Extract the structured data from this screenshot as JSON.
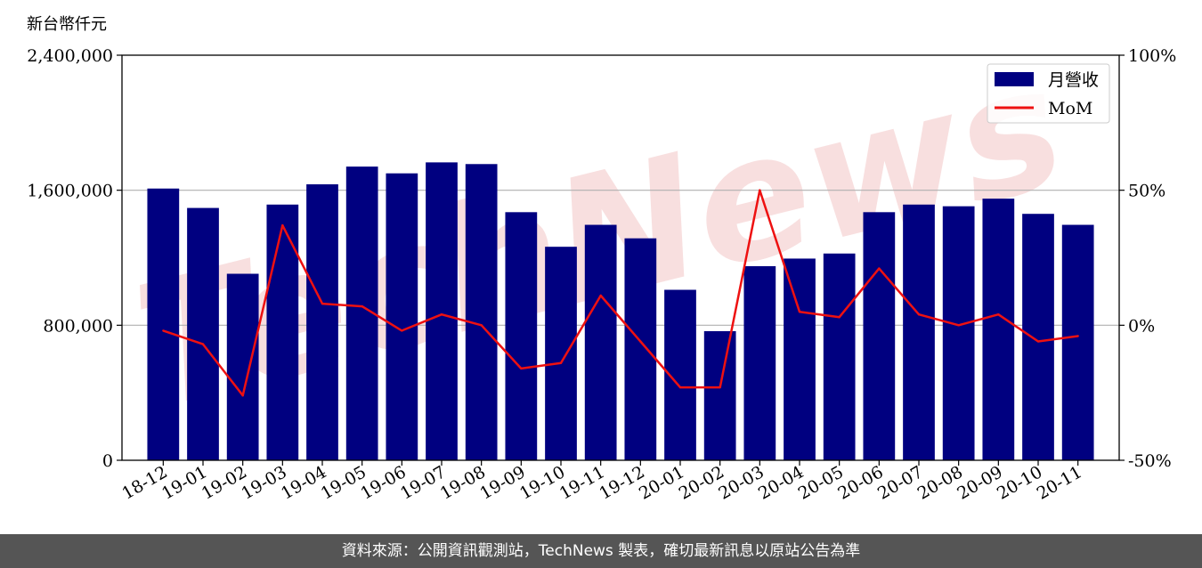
{
  "colors": {
    "bar": "#000080",
    "line": "#ee1111",
    "footer_bg": "#555555",
    "grid": "#b0b0b0",
    "watermark": "#f2c4c4"
  },
  "watermark": {
    "text": "TechNews"
  },
  "footer": {
    "text": "資料來源：公開資訊觀測站，TechNews 製表，確切最新訊息以原站公告為準"
  },
  "chart_data": {
    "type": "bar",
    "ylabel": "新台幣仟元",
    "categories": [
      "18-12",
      "19-01",
      "19-02",
      "19-03",
      "19-04",
      "19-05",
      "19-06",
      "19-07",
      "19-08",
      "19-09",
      "19-10",
      "19-11",
      "19-12",
      "20-01",
      "20-02",
      "20-03",
      "20-04",
      "20-05",
      "20-06",
      "20-07",
      "20-08",
      "20-09",
      "20-10",
      "20-11"
    ],
    "ylim": [
      0,
      2400000
    ],
    "yticks": [
      0,
      800000,
      1600000,
      2400000
    ],
    "yticklabels": [
      "0",
      "800,000",
      "1,600,000",
      "2,400,000"
    ],
    "y2lim": [
      -50,
      100
    ],
    "y2ticks": [
      -50,
      0,
      50,
      100
    ],
    "y2ticklabels": [
      "-50%",
      "0%",
      "50%",
      "100%"
    ],
    "grid": "horizontal",
    "legend": "top-right",
    "series": [
      {
        "name": "月營收",
        "type": "bar",
        "axis": "left",
        "values": [
          1610000,
          1495000,
          1105000,
          1515000,
          1635000,
          1740000,
          1700000,
          1765000,
          1755000,
          1470000,
          1265000,
          1395000,
          1315000,
          1010000,
          765000,
          1150000,
          1195000,
          1225000,
          1470000,
          1515000,
          1505000,
          1550000,
          1460000,
          1395000
        ]
      },
      {
        "name": "MoM",
        "type": "line",
        "axis": "right",
        "values": [
          -2,
          -7,
          -26,
          37,
          8,
          7,
          -2,
          4,
          0,
          -16,
          -14,
          11,
          -6,
          -23,
          -23,
          50,
          5,
          3,
          21,
          4,
          0,
          4,
          -6,
          -4
        ]
      }
    ]
  }
}
